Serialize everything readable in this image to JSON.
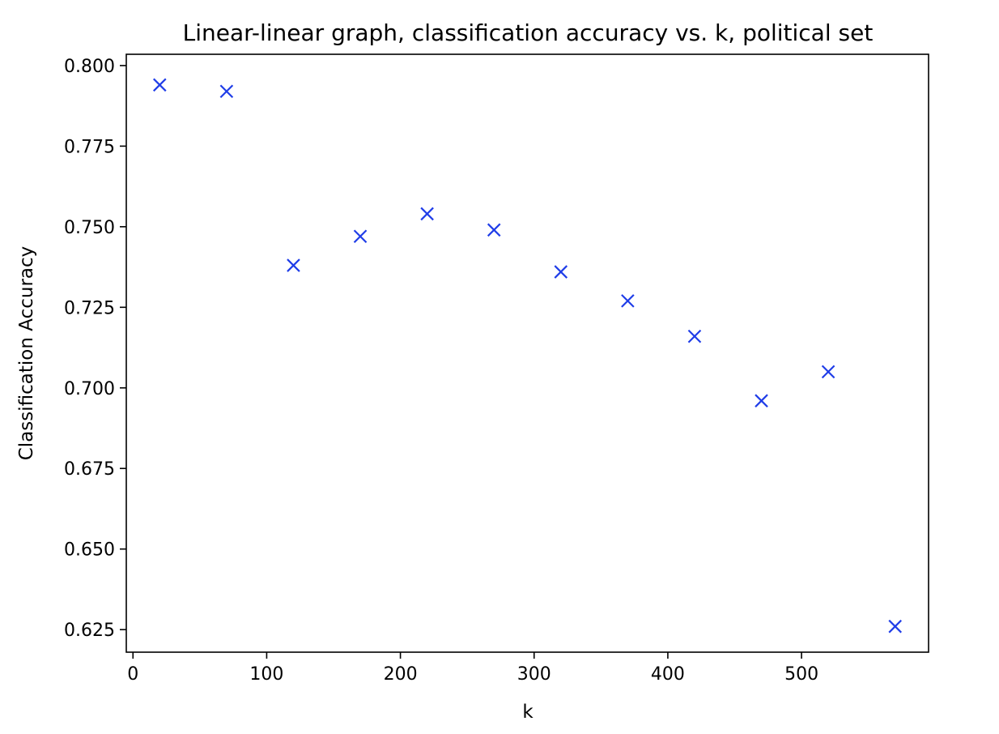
{
  "chart_data": {
    "type": "scatter",
    "title": "Linear-linear graph, classification accuracy vs. k, political set",
    "xlabel": "k",
    "ylabel": "Classification Accuracy",
    "xlim": [
      -5,
      595
    ],
    "ylim": [
      0.618,
      0.8035
    ],
    "xticks": [
      0,
      100,
      200,
      300,
      400,
      500
    ],
    "xtick_labels": [
      "0",
      "100",
      "200",
      "300",
      "400",
      "500"
    ],
    "yticks": [
      0.625,
      0.65,
      0.675,
      0.7,
      0.725,
      0.75,
      0.775,
      0.8
    ],
    "ytick_labels": [
      "0.625",
      "0.650",
      "0.675",
      "0.700",
      "0.725",
      "0.750",
      "0.775",
      "0.800"
    ],
    "grid": false,
    "marker": "x",
    "marker_color": "#1f3de8",
    "series": [
      {
        "x": [
          20,
          70,
          120,
          170,
          220,
          270,
          320,
          370,
          420,
          470,
          520,
          570
        ],
        "y": [
          0.794,
          0.792,
          0.738,
          0.747,
          0.754,
          0.749,
          0.736,
          0.727,
          0.716,
          0.696,
          0.705,
          0.626
        ]
      }
    ]
  }
}
